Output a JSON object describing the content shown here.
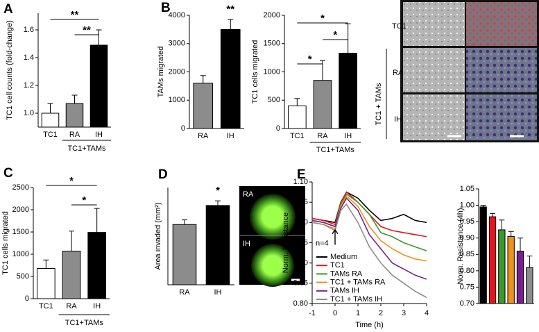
{
  "chart_data": [
    {
      "type": "bar",
      "panel": "A",
      "y_label": "TC1 cell counts (fold-change)",
      "categories": [
        "TC1",
        "RA",
        "IH"
      ],
      "values": [
        1.0,
        1.07,
        1.49
      ],
      "errors": [
        0.07,
        0.06,
        0.11
      ],
      "colors": [
        "#ffffff",
        "#8c8c8c",
        "#000000"
      ],
      "ylim": [
        0.9,
        1.72
      ],
      "yticks": [
        {
          "value": 1.0,
          "label": "1.0"
        },
        {
          "value": 1.2,
          "label": "1.2"
        },
        {
          "value": 1.4,
          "label": "1.4"
        },
        {
          "value": 1.6,
          "label": "1.6"
        }
      ],
      "group_label": {
        "text": "TC1+TAMs",
        "spans": [
          "RA",
          "IH"
        ]
      },
      "significance": [
        {
          "between": [
            "TC1",
            "IH"
          ],
          "label": "**"
        },
        {
          "between": [
            "RA",
            "IH"
          ],
          "label": "**"
        }
      ]
    },
    {
      "type": "bar",
      "panel": "B",
      "y_label": "TAMs migrated",
      "categories": [
        "RA",
        "IH"
      ],
      "values": [
        1600,
        3500
      ],
      "errors": [
        270,
        350
      ],
      "colors": [
        "#8c8c8c",
        "#000000"
      ],
      "ylim": [
        0,
        4000
      ],
      "yticks": [
        0,
        1000,
        2000,
        3000,
        4000
      ],
      "significance": [
        {
          "over": "IH",
          "label": "**"
        }
      ]
    },
    {
      "type": "bar",
      "y_label": "TC1 cells migrated",
      "categories": [
        "TC1",
        "RA",
        "IH"
      ],
      "values": [
        400,
        850,
        1330
      ],
      "errors": [
        130,
        350,
        520
      ],
      "colors": [
        "#ffffff",
        "#8c8c8c",
        "#000000"
      ],
      "ylim": [
        0,
        2000
      ],
      "yticks": [
        0,
        500,
        1000,
        1500,
        2000
      ],
      "group_label": {
        "text": "TC1+TAMs",
        "spans": [
          "RA",
          "IH"
        ]
      },
      "significance": [
        {
          "between": [
            "TC1",
            "IH"
          ],
          "label": "*"
        },
        {
          "between": [
            "RA",
            "IH"
          ],
          "label": "*"
        },
        {
          "between": [
            "TC1",
            "RA"
          ],
          "label": "*"
        }
      ]
    },
    {
      "type": "bar",
      "panel": "C",
      "y_label": "TC1 cells migrated",
      "categories": [
        "TC1",
        "RA",
        "IH"
      ],
      "values": [
        680,
        1070,
        1490
      ],
      "errors": [
        190,
        450,
        540
      ],
      "colors": [
        "#ffffff",
        "#8c8c8c",
        "#000000"
      ],
      "ylim": [
        0,
        2500
      ],
      "yticks": [
        0,
        500,
        1000,
        1500,
        2000,
        2500
      ],
      "group_label": {
        "text": "TC1+TAMs",
        "spans": [
          "RA",
          "IH"
        ]
      },
      "significance": [
        {
          "between": [
            "TC1",
            "IH"
          ],
          "label": "*"
        },
        {
          "between": [
            "RA",
            "IH"
          ],
          "label": "*"
        }
      ]
    },
    {
      "type": "bar",
      "panel": "D",
      "y_label": "Area invaded (mm²)",
      "categories": [
        "RA",
        "IH"
      ],
      "values": [
        2.85,
        3.75
      ],
      "errors": [
        0.22,
        0.22
      ],
      "colors": [
        "#8c8c8c",
        "#000000"
      ],
      "ylim": [
        0,
        4.6
      ],
      "significance": [
        {
          "over": "IH",
          "label": "*"
        }
      ]
    },
    {
      "type": "line",
      "panel": "E",
      "y_label": "Norm. Resistance",
      "x_label": "Time (h)",
      "annotation": "n=4",
      "x": [
        -1,
        -0.5,
        0,
        0.25,
        0.5,
        1,
        1.5,
        2,
        2.5,
        3,
        3.5,
        4
      ],
      "series": [
        {
          "name": "Medium",
          "color": "#000000",
          "values": [
            1.01,
            1.005,
            1.0,
            1.05,
            1.075,
            1.06,
            1.03,
            1.005,
            1.01,
            1.02,
            1.005,
            1.0
          ]
        },
        {
          "name": "TC1",
          "color": "#e8141b",
          "values": [
            1.01,
            1.005,
            0.995,
            1.05,
            1.075,
            1.05,
            1.02,
            0.99,
            0.98,
            0.975,
            0.97,
            0.965
          ]
        },
        {
          "name": "TAMs RA",
          "color": "#3a9a2b",
          "values": [
            1.005,
            1.0,
            0.99,
            1.045,
            1.07,
            1.05,
            1.02,
            0.975,
            0.965,
            0.95,
            0.94,
            0.93
          ]
        },
        {
          "name": "TC1 + TAMs RA",
          "color": "#f0901e",
          "values": [
            1.0,
            0.995,
            0.985,
            1.04,
            1.065,
            1.04,
            0.99,
            0.955,
            0.935,
            0.92,
            0.91,
            0.905
          ]
        },
        {
          "name": "TAMs IH",
          "color": "#7a1f8e",
          "values": [
            1.005,
            1.0,
            0.99,
            1.035,
            1.06,
            1.03,
            0.97,
            0.935,
            0.9,
            0.885,
            0.87,
            0.86
          ]
        },
        {
          "name": "TC1 + TAMs IH",
          "color": "#8c8c8c",
          "values": [
            1.0,
            0.995,
            0.98,
            1.03,
            1.045,
            1.0,
            0.94,
            0.9,
            0.87,
            0.85,
            0.83,
            0.815
          ]
        }
      ],
      "xlim": [
        -1,
        4
      ],
      "xticks": [
        -1,
        0,
        1,
        2,
        3,
        4
      ],
      "ylim": [
        0.8,
        1.1
      ],
      "yticks": [
        {
          "value": 0.8,
          "label": "0.80"
        },
        {
          "value": 0.85,
          "label": "0.85"
        },
        {
          "value": 0.9,
          "label": "0.90"
        },
        {
          "value": 0.95,
          "label": "0.95"
        },
        {
          "value": 1.0,
          "label": "1.00"
        },
        {
          "value": 1.05,
          "label": "1.05"
        },
        {
          "value": 1.1,
          "label": "1.10"
        }
      ]
    },
    {
      "type": "bar",
      "y_label": "Norm. Resistance (4h)",
      "values": [
        0.995,
        0.965,
        0.925,
        0.905,
        0.86,
        0.81
      ],
      "errors": [
        0.005,
        0.01,
        0.03,
        0.015,
        0.04,
        0.035
      ],
      "colors": [
        "#000000",
        "#e8141b",
        "#3a9a2b",
        "#f0901e",
        "#7a1f8e",
        "#8c8c8c"
      ],
      "ylim": [
        0.7,
        1.05
      ],
      "yticks": [
        {
          "value": 0.7,
          "label": "0.70"
        },
        {
          "value": 0.75,
          "label": "0.75"
        },
        {
          "value": 0.8,
          "label": "0.80"
        },
        {
          "value": 0.85,
          "label": "0.85"
        },
        {
          "value": 0.9,
          "label": "0.90"
        },
        {
          "value": 0.95,
          "label": "0.95"
        },
        {
          "value": 1.0,
          "label": "1.00"
        },
        {
          "value": 1.05,
          "label": "1.05"
        }
      ]
    }
  ],
  "micrographs_B": {
    "rows": [
      "TC1",
      "RA",
      "IH"
    ],
    "group": "TC1 + TAMs"
  },
  "micrographs_D": {
    "labels": [
      "RA",
      "IH"
    ]
  }
}
